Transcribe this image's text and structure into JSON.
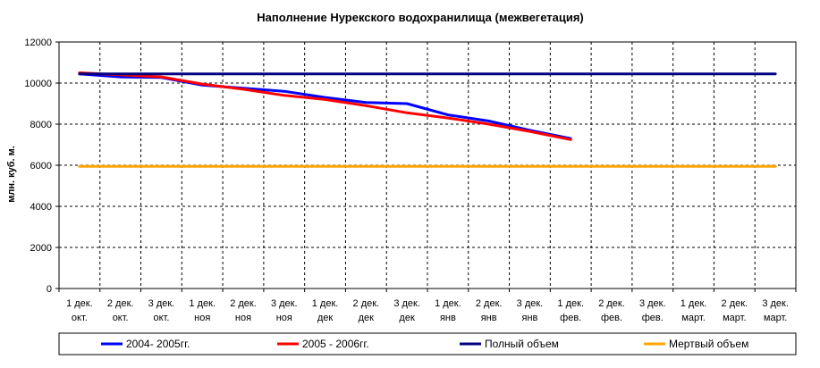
{
  "chart_data": {
    "type": "line",
    "title": "Наполнение Нурекского водохранилища (межвегетация)",
    "xlabel": "",
    "ylabel": "млн. куб. м.",
    "ylim": [
      0,
      12000
    ],
    "yticks": [
      "0",
      "2000",
      "4000",
      "6000",
      "8000",
      "10000",
      "12000"
    ],
    "categories": [
      [
        "1 дек.",
        "окт."
      ],
      [
        "2 дек.",
        "окт."
      ],
      [
        "3 дек.",
        "окт."
      ],
      [
        "1 дек.",
        "ноя"
      ],
      [
        "2 дек.",
        "ноя"
      ],
      [
        "3 дек.",
        "ноя"
      ],
      [
        "1 дек.",
        "дек"
      ],
      [
        "2 дек.",
        "дек"
      ],
      [
        "3 дек.",
        "дек"
      ],
      [
        "1 дек.",
        "янв"
      ],
      [
        "2 дек.",
        "янв"
      ],
      [
        "3 дек.",
        "янв"
      ],
      [
        "1 дек.",
        "фев."
      ],
      [
        "2 дек.",
        "фев."
      ],
      [
        "3 дек.",
        "фев."
      ],
      [
        "1 дек.",
        "март."
      ],
      [
        "2 дек.",
        "март."
      ],
      [
        "3 дек.",
        "март."
      ]
    ],
    "grid": true,
    "legend_position": "bottom",
    "series": [
      {
        "name": "2004- 2005гг.",
        "color": "#0000ff",
        "values": [
          10450,
          10300,
          10270,
          9900,
          9750,
          9600,
          9300,
          9050,
          9000,
          8450,
          8150,
          7700,
          7300,
          null,
          null,
          null,
          null,
          null
        ]
      },
      {
        "name": "2005 - 2006гг.",
        "color": "#ff0000",
        "values": [
          10500,
          10400,
          10300,
          9950,
          9700,
          9400,
          9200,
          8900,
          8550,
          8300,
          8000,
          7650,
          7250,
          null,
          null,
          null,
          null,
          null
        ]
      },
      {
        "name": "Полный объем",
        "color": "#000080",
        "values": [
          10450,
          10450,
          10450,
          10450,
          10450,
          10450,
          10450,
          10450,
          10450,
          10450,
          10450,
          10450,
          10450,
          10450,
          10450,
          10450,
          10450,
          10450
        ]
      },
      {
        "name": "Мертвый объем",
        "color": "#ffa500",
        "values": [
          5950,
          5950,
          5950,
          5950,
          5950,
          5950,
          5950,
          5950,
          5950,
          5950,
          5950,
          5950,
          5950,
          5950,
          5950,
          5950,
          5950,
          5950
        ]
      }
    ]
  }
}
